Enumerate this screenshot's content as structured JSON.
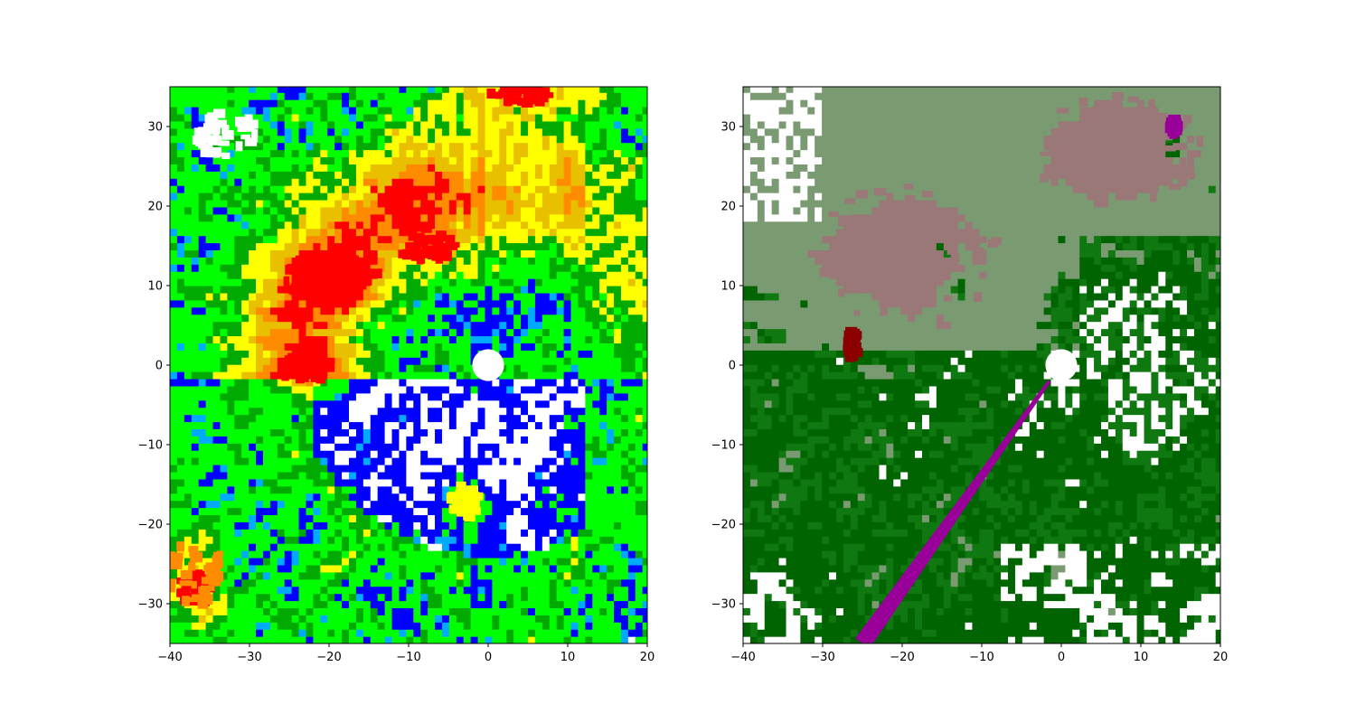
{
  "chart_data": [
    {
      "type": "heatmap",
      "title": "",
      "xlabel": "",
      "ylabel": "",
      "xlim": [
        -40,
        20
      ],
      "ylim": [
        -35,
        35
      ],
      "xticks": [
        -40,
        -30,
        -20,
        -10,
        0,
        10,
        20
      ],
      "yticks": [
        -30,
        -20,
        -10,
        0,
        10,
        20,
        30
      ],
      "xtick_labels": [
        "−40",
        "−30",
        "−20",
        "−10",
        "0",
        "10",
        "20"
      ],
      "ytick_labels": [
        "−30",
        "−20",
        "−10",
        "0",
        "10",
        "20",
        "30"
      ],
      "grid": false,
      "colors": {
        "very_low": "#0000ff",
        "low": "#00aaff",
        "light": "#00ff00",
        "moderate": "#00aa00",
        "elevated": "#ffff00",
        "high": "#e8c000",
        "very_high": "#ff8c00",
        "extreme": "#ff0000",
        "empty": "#ffffff"
      },
      "features": [
        {
          "class": "extreme",
          "x": -20,
          "y": 11,
          "rx": 6,
          "ry": 3
        },
        {
          "class": "extreme",
          "x": -23,
          "y": 0,
          "rx": 3,
          "ry": 2
        },
        {
          "class": "extreme",
          "x": -8,
          "y": 15,
          "rx": 4,
          "ry": 2
        },
        {
          "class": "extreme",
          "x": -37,
          "y": -28,
          "rx": 2,
          "ry": 2
        },
        {
          "class": "extreme",
          "x": 4,
          "y": 34,
          "rx": 4,
          "ry": 1
        },
        {
          "class": "very_high",
          "x": -37,
          "y": -26,
          "rx": 4,
          "ry": 4
        },
        {
          "class": "elevated",
          "x": -3,
          "y": -17,
          "rx": 2,
          "ry": 2
        },
        {
          "class": "empty",
          "x": -33,
          "y": 29,
          "rx": 4,
          "ry": 3
        }
      ],
      "center_hole": {
        "x": 0,
        "y": 0,
        "r": 2
      }
    },
    {
      "type": "heatmap",
      "title": "",
      "xlabel": "",
      "ylabel": "",
      "xlim": [
        -40,
        20
      ],
      "ylim": [
        -35,
        35
      ],
      "xticks": [
        -40,
        -30,
        -20,
        -10,
        0,
        10,
        20
      ],
      "yticks": [
        -30,
        -20,
        -10,
        0,
        10,
        20,
        30
      ],
      "xtick_labels": [
        "−40",
        "−30",
        "−20",
        "−10",
        "0",
        "10",
        "20"
      ],
      "ytick_labels": [
        "−30",
        "−20",
        "−10",
        "0",
        "10",
        "20",
        "30"
      ],
      "grid": false,
      "colors": {
        "class_a": "#7a9a72",
        "class_b": "#9a7878",
        "class_c": "#107810",
        "class_d": "#006400",
        "class_e": "#990099",
        "class_f": "#8b0000",
        "empty": "#ffffff"
      },
      "features": [
        {
          "class": "class_b",
          "x": -20,
          "y": 14,
          "rx": 12,
          "ry": 9
        },
        {
          "class": "class_b",
          "x": 8,
          "y": 27,
          "rx": 12,
          "ry": 7
        },
        {
          "class": "class_e",
          "from": [
            -1.5,
            -2
          ],
          "to": [
            -25,
            -35
          ],
          "width": 2.2
        },
        {
          "class": "class_e",
          "x": 14,
          "y": 30,
          "rx": 0.5,
          "ry": 1
        },
        {
          "class": "class_f",
          "x": -26.5,
          "y": 2.5,
          "rx": 0.6,
          "ry": 2
        }
      ],
      "center_hole": {
        "x": 0,
        "y": 0,
        "r": 2
      }
    }
  ]
}
